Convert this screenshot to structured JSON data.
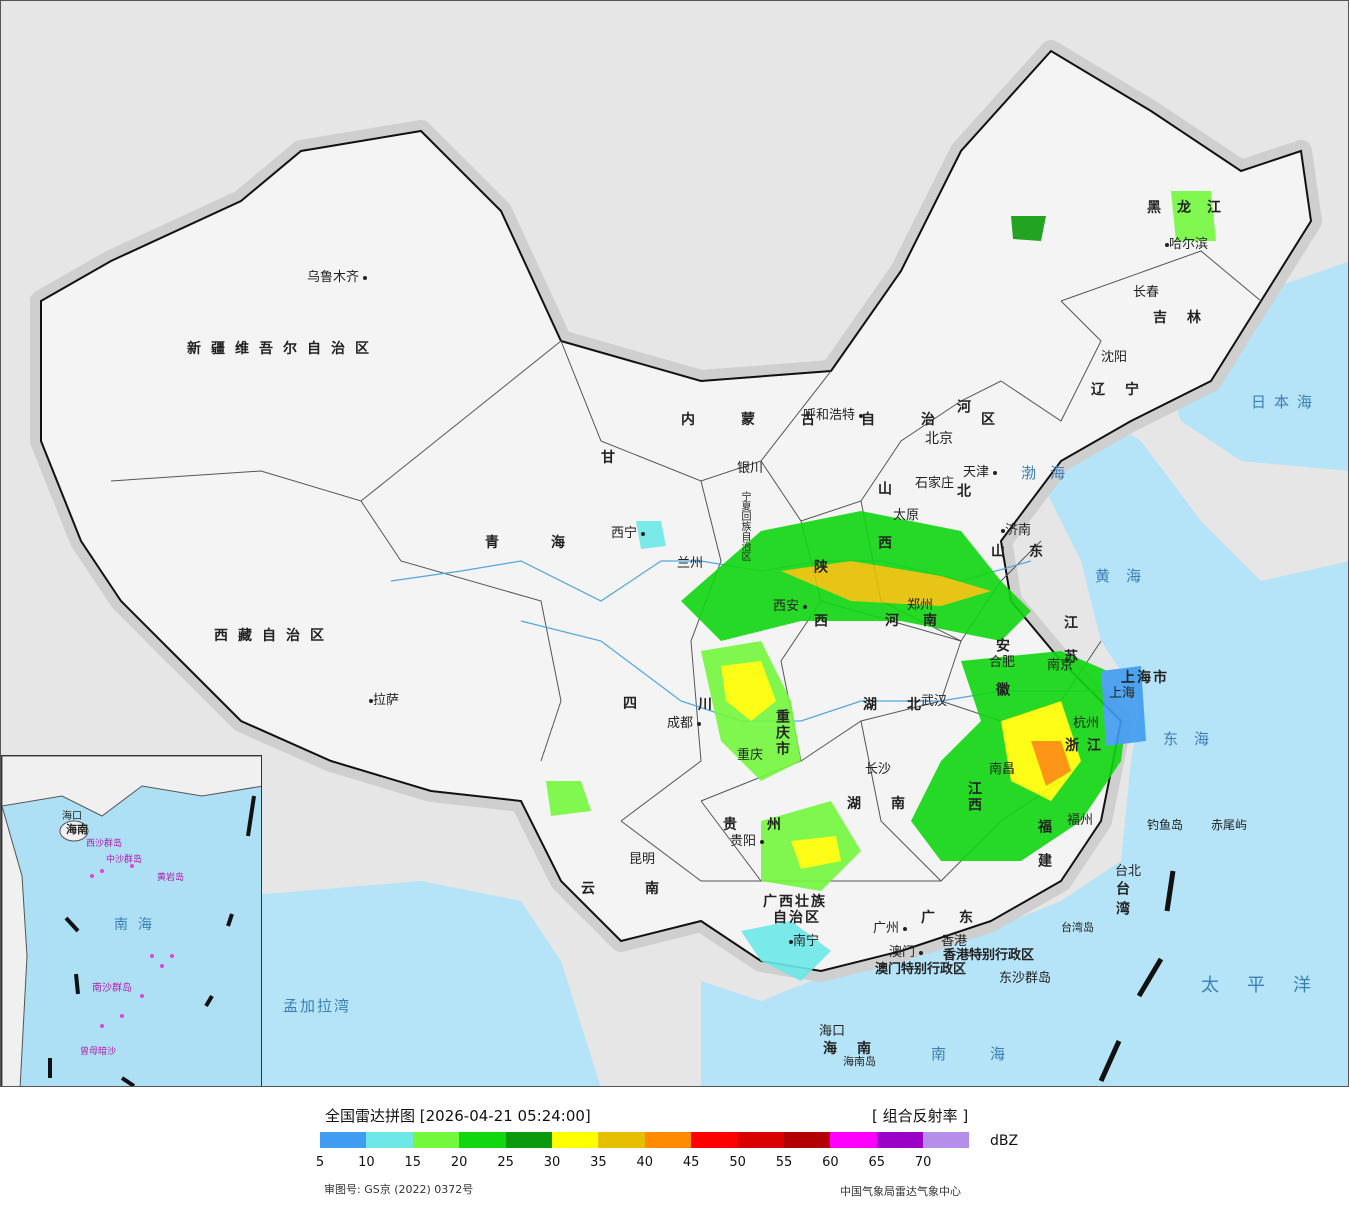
{
  "legend": {
    "title": "全国雷达拼图 [2026-04-21 05:24:00]",
    "product": "[ 组合反射率 ]",
    "unit": "dBZ",
    "approval": "审图号: GS京 (2022) 0372号",
    "source": "中国气象局雷达气象中心",
    "colors": [
      "#3f9cf0",
      "#6de8e8",
      "#73f83e",
      "#11d711",
      "#0b9a0b",
      "#ffff00",
      "#e6c000",
      "#ff8c00",
      "#ff0000",
      "#d90000",
      "#b20000",
      "#ff00ff",
      "#9a00c8",
      "#b48ee8"
    ],
    "ticks": [
      "5",
      "10",
      "15",
      "20",
      "25",
      "30",
      "35",
      "40",
      "45",
      "50",
      "55",
      "60",
      "65",
      "70"
    ]
  },
  "provinces": {
    "xinjiang": "新疆维吾尔自治区",
    "xizang": "西藏自治区",
    "qinghai": "青海",
    "gansu": "甘",
    "sichuan": "四",
    "sichuan2": "川",
    "yunnan": "云南",
    "guizhou": "贵州",
    "guangxi": "广西壮族",
    "guangxi2": "自治区",
    "guangdong": "广东",
    "hunan": "湖南",
    "hubei": "湖北",
    "jiangxi": "江西",
    "fujian": "福建",
    "zhejiang": "浙江",
    "anhui": "安徽",
    "jiangsu": "江苏",
    "shandong": "山东",
    "henan": "河南",
    "shanxi": "山西",
    "shaanxi": "陕西",
    "hebei": "河北",
    "neimeng": "内蒙古自治区",
    "heilongjiang": "黑龙江",
    "jilin": "吉林",
    "liaoning": "辽宁",
    "hainan": "海南",
    "taiwan": "台湾",
    "chongqing": "重庆市",
    "shanghai": "上海市",
    "ningxia": "宁夏回族自治区"
  },
  "cities": {
    "urumqi": "乌鲁木齐",
    "lhasa": "拉萨",
    "xining": "西宁",
    "lanzhou": "兰州",
    "yinchuan": "银川",
    "hohhot": "呼和浩特",
    "beijing": "北京",
    "tianjin": "天津",
    "shijiazhuang": "石家庄",
    "taiyuan": "太原",
    "jinan": "济南",
    "xian": "西安",
    "zhengzhou": "郑州",
    "chengdu": "成都",
    "chongqing": "重庆",
    "guiyang": "贵阳",
    "kunming": "昆明",
    "nanning": "南宁",
    "guangzhou": "广州",
    "macau": "澳门",
    "hongkong": "香港",
    "haikou": "海口",
    "changsha": "长沙",
    "wuhan": "武汉",
    "nanchang": "南昌",
    "hefei": "合肥",
    "nanjing": "南京",
    "shanghai": "上海",
    "hangzhou": "杭州",
    "fuzhou": "福州",
    "taibei": "台北",
    "shenyang": "沈阳",
    "changchun": "长春",
    "harbin": "哈尔滨",
    "hk_sar": "香港特别行政区",
    "macau_sar": "澳门特别行政区",
    "dongsha": "东沙群岛",
    "diaoyu": "钓鱼岛",
    "chiwei": "赤尾屿",
    "taiwan_island": "台湾岛",
    "hainan_island": "海南岛"
  },
  "seas": {
    "japan_sea": "日本海",
    "bohai": "渤海",
    "yellow_sea": "黄海",
    "east_sea": "东海",
    "south_sea": "南海",
    "pacific": "太平洋",
    "bengal": "孟加拉湾"
  },
  "inset": {
    "south_sea": "南海",
    "nansha": "南沙群岛",
    "zhongsha": "中沙群岛",
    "xisha": "西沙群岛",
    "huangyan": "黄岩岛",
    "zengmu": "曾母暗沙",
    "haikou": "海口",
    "hainan": "海南"
  }
}
